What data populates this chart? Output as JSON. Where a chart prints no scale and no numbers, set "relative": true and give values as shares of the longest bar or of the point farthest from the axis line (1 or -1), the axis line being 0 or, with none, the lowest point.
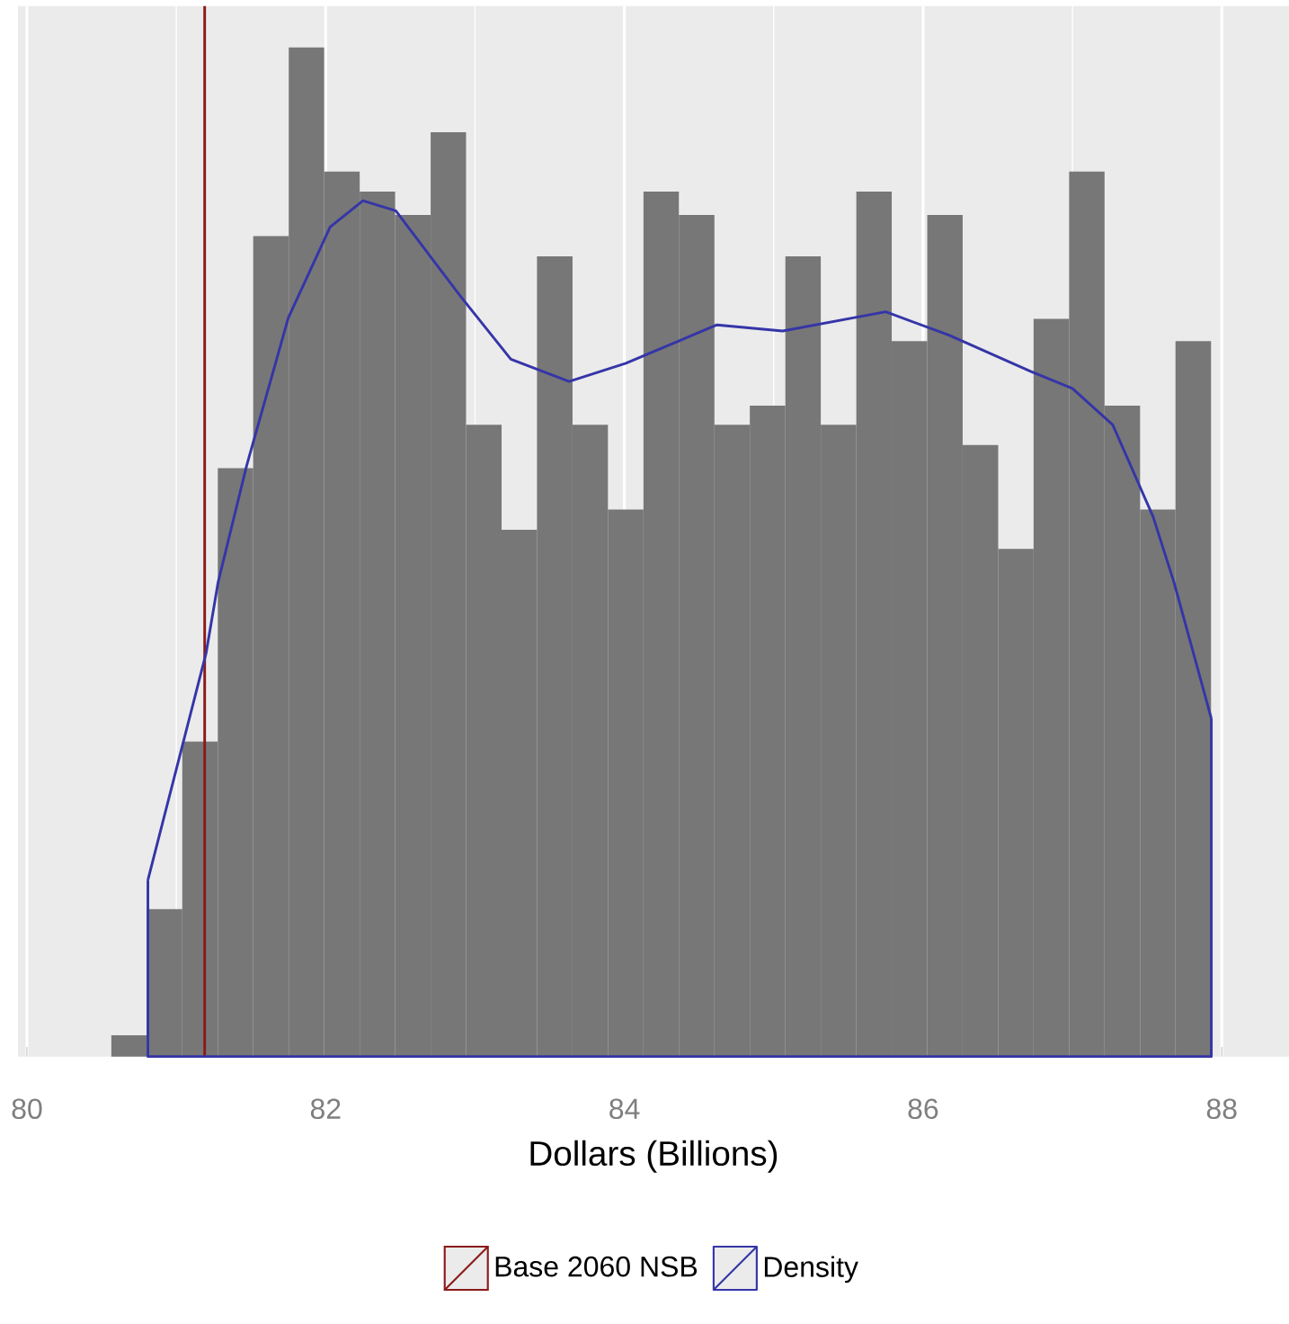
{
  "chart_data": {
    "type": "histogram",
    "xlabel": "Dollars (Billions)",
    "relative": true,
    "bins": [
      80.565,
      80.803,
      81.04,
      81.278,
      81.515,
      81.753,
      81.99,
      82.228,
      82.465,
      82.703,
      82.94,
      83.178,
      83.415,
      83.653,
      83.89,
      84.128,
      84.365,
      84.603,
      84.84,
      85.078,
      85.315,
      85.553,
      85.79,
      86.028,
      86.265,
      86.503,
      86.74,
      86.978,
      87.215,
      87.453,
      87.69,
      87.928
    ],
    "color": "#777777",
    "values": [
      0.021,
      0.146,
      0.312,
      0.583,
      0.813,
      1.0,
      0.877,
      0.857,
      0.834,
      0.916,
      0.626,
      0.522,
      0.793,
      0.626,
      0.542,
      0.857,
      0.834,
      0.626,
      0.645,
      0.793,
      0.626,
      0.857,
      0.709,
      0.834,
      0.606,
      0.503,
      0.731,
      0.877,
      0.645,
      0.542,
      0.709
    ],
    "series": [
      {
        "type": "line",
        "name": "Density",
        "color": "#3535a8",
        "x": [
          80.81,
          81.2,
          81.28,
          81.47,
          81.75,
          82.03,
          82.25,
          82.47,
          82.91,
          83.24,
          83.63,
          84.01,
          84.62,
          85.06,
          85.75,
          86.17,
          86.72,
          87.0,
          87.27,
          87.54,
          87.68,
          87.93
        ],
        "values": [
          0.175,
          0.4,
          0.47,
          0.585,
          0.732,
          0.822,
          0.848,
          0.838,
          0.752,
          0.691,
          0.669,
          0.687,
          0.725,
          0.719,
          0.738,
          0.715,
          0.679,
          0.662,
          0.626,
          0.535,
          0.47,
          0.335
        ]
      }
    ],
    "ref_lines": [
      {
        "axis": "x",
        "value": 81.19,
        "label": "Base 2060 NSB",
        "color": "#8b1a1a"
      }
    ],
    "xlim": [
      79.94,
      88.45
    ],
    "xticks": [
      80,
      82,
      84,
      86,
      88
    ],
    "grid": "x",
    "legend": "bottom"
  }
}
